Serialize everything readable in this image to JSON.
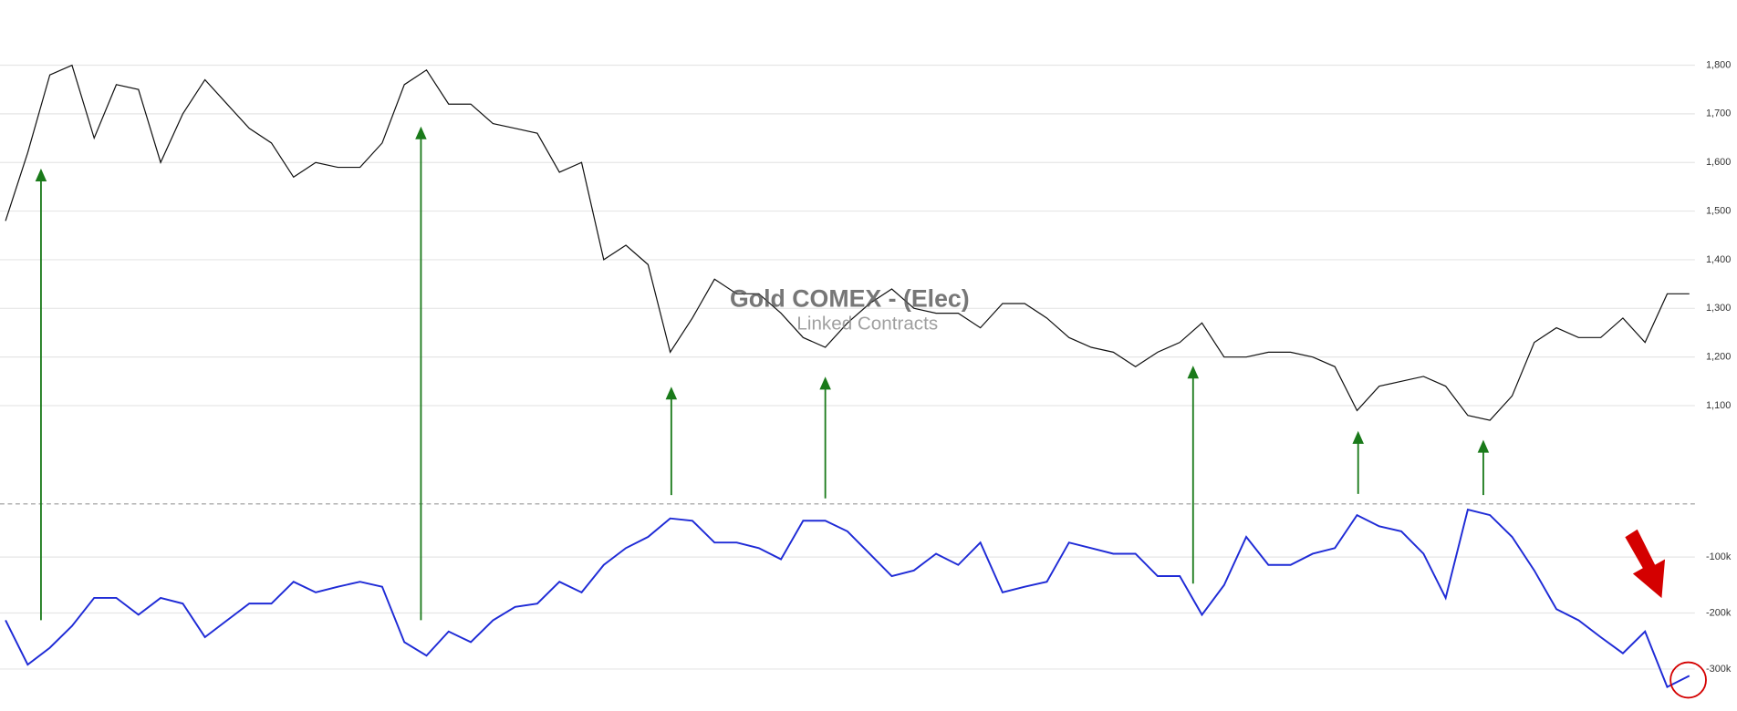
{
  "chart_data": [
    {
      "type": "line",
      "title": "Gold COMEX - (Elec)",
      "subtitle": "Linked Contracts",
      "color": "#111111",
      "grid": true,
      "ylim": [
        898,
        1934
      ],
      "yticks": [
        {
          "value": 1100,
          "label": "1,100"
        },
        {
          "value": 1200,
          "label": "1,200"
        },
        {
          "value": 1300,
          "label": "1,300"
        },
        {
          "value": 1400,
          "label": "1,400"
        },
        {
          "value": 1500,
          "label": "1,500"
        },
        {
          "value": 1600,
          "label": "1,600"
        },
        {
          "value": 1700,
          "label": "1,700"
        },
        {
          "value": 1800,
          "label": "1,800"
        }
      ],
      "values": [
        1480,
        1620,
        1780,
        1800,
        1650,
        1760,
        1750,
        1600,
        1700,
        1770,
        1720,
        1670,
        1640,
        1570,
        1600,
        1590,
        1590,
        1640,
        1760,
        1790,
        1720,
        1720,
        1680,
        1670,
        1660,
        1580,
        1600,
        1400,
        1430,
        1390,
        1210,
        1280,
        1360,
        1330,
        1330,
        1290,
        1240,
        1220,
        1270,
        1310,
        1340,
        1300,
        1290,
        1290,
        1260,
        1310,
        1310,
        1280,
        1240,
        1220,
        1210,
        1180,
        1210,
        1230,
        1270,
        1200,
        1200,
        1210,
        1210,
        1200,
        1180,
        1090,
        1140,
        1150,
        1160,
        1140,
        1080,
        1070,
        1120,
        1230,
        1260,
        1240,
        1240,
        1280,
        1230,
        1330,
        1330
      ]
    },
    {
      "type": "line",
      "color": "#1f2bd6",
      "grid": true,
      "ylim": [
        -375000,
        -5000
      ],
      "yticks": [
        {
          "value": -300000,
          "label": "-300k"
        },
        {
          "value": -200000,
          "label": "-200k"
        },
        {
          "value": -100000,
          "label": "-100k"
        }
      ],
      "values": [
        -213000,
        -292000,
        -262000,
        -223000,
        -173000,
        -173000,
        -203000,
        -173000,
        -183000,
        -243000,
        -213000,
        -183000,
        -183000,
        -144000,
        -163000,
        -153000,
        -144000,
        -153000,
        -252000,
        -276000,
        -233000,
        -252000,
        -213000,
        -189000,
        -183000,
        -144000,
        -163000,
        -114000,
        -84000,
        -64000,
        -31000,
        -35000,
        -74000,
        -74000,
        -84000,
        -104000,
        -35000,
        -35000,
        -54000,
        -94000,
        -134000,
        -124000,
        -94000,
        -114000,
        -74000,
        -163000,
        -153000,
        -144000,
        -74000,
        -84000,
        -94000,
        -94000,
        -134000,
        -134000,
        -203000,
        -150000,
        -64000,
        -114000,
        -114000,
        -94000,
        -84000,
        -25000,
        -45000,
        -54000,
        -94000,
        -173000,
        -15000,
        -25000,
        -64000,
        -124000,
        -193000,
        -213000,
        -243000,
        -272000,
        -233000,
        -332000,
        -312000
      ]
    }
  ]
}
